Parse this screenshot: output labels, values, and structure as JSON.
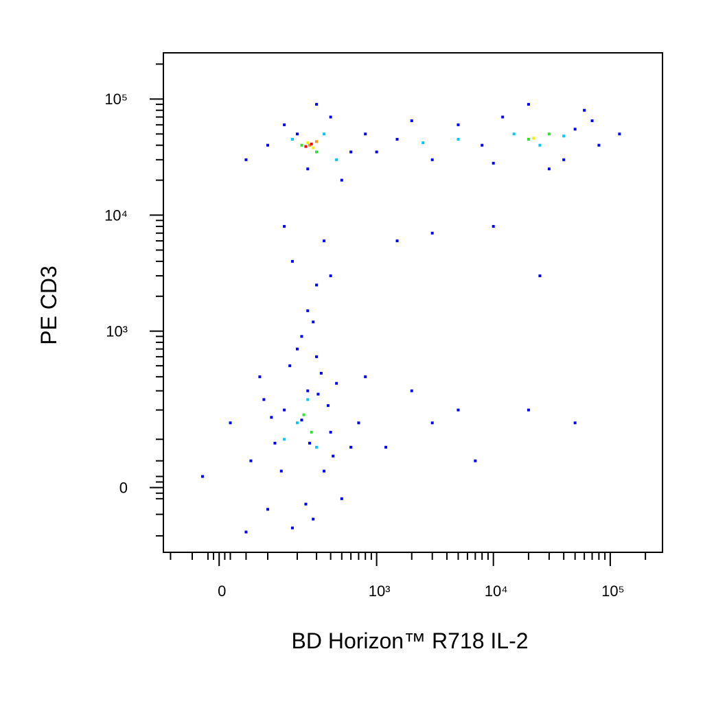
{
  "chart_data": {
    "type": "scatter",
    "scale": "biexponential",
    "x_label": "BD Horizon™ R718 IL-2",
    "y_label": "PE CD3",
    "xlim": [
      -120,
      280000
    ],
    "ylim": [
      -150,
      250000
    ],
    "xticks": [
      0,
      {
        "value": 1000,
        "label": "10³"
      },
      {
        "value": 10000,
        "label": "10⁴"
      },
      {
        "value": 100000,
        "label": "10⁵"
      }
    ],
    "yticks": [
      0,
      {
        "value": 1000,
        "label": "10³"
      },
      {
        "value": 10000,
        "label": "10⁴"
      },
      {
        "value": 100000,
        "label": "10⁵"
      }
    ],
    "xminorticks": [
      -100,
      -50,
      -20,
      -10,
      10,
      20,
      50,
      100,
      200,
      300,
      400,
      500,
      600,
      700,
      800,
      900,
      2000,
      3000,
      4000,
      5000,
      6000,
      7000,
      8000,
      9000,
      20000,
      30000,
      40000,
      50000,
      60000,
      70000,
      80000,
      90000,
      200000
    ],
    "yminorticks": [
      -100,
      -50,
      -20,
      -10,
      10,
      20,
      50,
      100,
      200,
      300,
      400,
      500,
      600,
      700,
      800,
      900,
      2000,
      3000,
      4000,
      5000,
      6000,
      7000,
      8000,
      9000,
      20000,
      30000,
      40000,
      50000,
      60000,
      70000,
      80000,
      90000,
      200000
    ],
    "series": [
      {
        "color": "#0000ff",
        "x": [
          60,
          100,
          150,
          250,
          400,
          500,
          80,
          180,
          300,
          20,
          350,
          120,
          220,
          450,
          600,
          -30,
          280,
          170,
          90,
          380,
          700,
          50,
          260,
          330,
          140,
          200,
          240,
          420,
          110,
          310,
          250,
          300,
          180,
          350,
          220,
          280,
          400,
          150,
          2000,
          3000,
          5000,
          1500,
          3000,
          10000,
          20000,
          50000,
          800,
          1200,
          7000,
          25000,
          100,
          150,
          250,
          400,
          600,
          800,
          1500,
          3000,
          5000,
          8000,
          12000,
          30000,
          50000,
          80000,
          120000,
          60000,
          20000,
          2000,
          300,
          50,
          500,
          40000,
          10000,
          1000,
          200,
          70000
        ],
        "values": [
          50,
          -40,
          200,
          300,
          120,
          -20,
          400,
          -80,
          600,
          150,
          30,
          90,
          160,
          350,
          80,
          20,
          -60,
          500,
          250,
          220,
          150,
          -90,
          90,
          430,
          30,
          700,
          -30,
          60,
          170,
          280,
          1500,
          2500,
          4000,
          6000,
          900,
          1200,
          3000,
          8000,
          300,
          150,
          200,
          6000,
          7000,
          8000,
          200,
          150,
          400,
          80,
          50,
          3000,
          40000,
          60000,
          25000,
          70000,
          35000,
          50000,
          45000,
          30000,
          60000,
          40000,
          70000,
          25000,
          55000,
          40000,
          50000,
          80000,
          90000,
          65000,
          90000,
          30000,
          20000,
          30000,
          28000,
          35000,
          50000,
          65000
        ]
      },
      {
        "color": "#00c8ff",
        "x": [
          180,
          350,
          450,
          15000,
          25000,
          40000,
          200,
          250,
          300,
          150,
          5000,
          2500
        ],
        "values": [
          45000,
          50000,
          30000,
          50000,
          40000,
          48000,
          150,
          250,
          80,
          100,
          45000,
          42000
        ]
      },
      {
        "color": "#30e030",
        "x": [
          220,
          300,
          20000,
          30000,
          230,
          270
        ],
        "values": [
          40000,
          35000,
          45000,
          50000,
          180,
          120
        ]
      },
      {
        "color": "#f0f000",
        "x": [
          250,
          280,
          22000
        ],
        "values": [
          42000,
          38000,
          46000
        ]
      },
      {
        "color": "#ff9000",
        "x": [
          260,
          300
        ],
        "values": [
          40000,
          43000
        ]
      },
      {
        "color": "#ff0000",
        "x": [
          270,
          240
        ],
        "values": [
          41000,
          39000
        ]
      }
    ]
  }
}
